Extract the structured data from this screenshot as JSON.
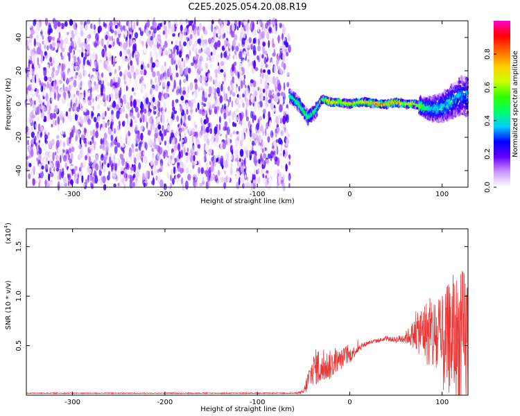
{
  "title": "C2E5.2025.054.20.08.R19",
  "chart_data": [
    {
      "type": "heatmap",
      "xlabel": "Height of straight line (km)",
      "ylabel": "Frequency (Hz)",
      "xlim": [
        -350,
        128
      ],
      "ylim": [
        -50,
        50
      ],
      "x_ticks": [
        -300,
        -200,
        -100,
        0,
        100
      ],
      "x_tick_labels": [
        "-300",
        "-200",
        "-100",
        "0",
        "100"
      ],
      "y_ticks": [
        -40,
        -20,
        0,
        20,
        40
      ],
      "y_tick_labels": [
        "-40",
        "-20",
        "0",
        "20",
        "40"
      ],
      "colorbar": {
        "label": "Normalized spectral amplitude",
        "range": [
          0,
          1
        ],
        "ticks": [
          0.0,
          0.2,
          0.4,
          0.6,
          0.8
        ],
        "tick_labels": [
          "0.0",
          "0.2",
          "0.4",
          "0.6",
          "0.8"
        ],
        "colors": [
          "#ffffff",
          "#cc99ff",
          "#6600ff",
          "#0000ff",
          "#00ccff",
          "#00ff66",
          "#33ff00",
          "#ccff00",
          "#ffcc00",
          "#ff6600",
          "#ff0000",
          "#ff00cc"
        ]
      },
      "noise_region": {
        "x_start": -350,
        "x_end": -65,
        "freq_range": [
          -50,
          50
        ],
        "amplitude": [
          0.0,
          0.2
        ]
      },
      "signal_ridge": [
        {
          "x": -65,
          "freq": 5,
          "amp": 0.45
        },
        {
          "x": -55,
          "freq": 0,
          "amp": 0.5
        },
        {
          "x": -45,
          "freq": -8,
          "amp": 0.5
        },
        {
          "x": -38,
          "freq": -5,
          "amp": 0.5
        },
        {
          "x": -30,
          "freq": 3,
          "amp": 0.6
        },
        {
          "x": -20,
          "freq": 1,
          "amp": 0.85
        },
        {
          "x": -10,
          "freq": 1,
          "amp": 0.7
        },
        {
          "x": 0,
          "freq": 0,
          "amp": 0.75
        },
        {
          "x": 10,
          "freq": 1,
          "amp": 0.7
        },
        {
          "x": 20,
          "freq": 1,
          "amp": 0.8
        },
        {
          "x": 30,
          "freq": 0,
          "amp": 0.9
        },
        {
          "x": 40,
          "freq": 0,
          "amp": 0.85
        },
        {
          "x": 50,
          "freq": 1,
          "amp": 0.9
        },
        {
          "x": 60,
          "freq": 0,
          "amp": 0.7
        },
        {
          "x": 70,
          "freq": 0,
          "amp": 0.75
        },
        {
          "x": 80,
          "freq": -2,
          "amp": 0.5
        },
        {
          "x": 90,
          "freq": -3,
          "amp": 0.4
        },
        {
          "x": 100,
          "freq": -2,
          "amp": 0.4
        },
        {
          "x": 110,
          "freq": 1,
          "amp": 0.4
        },
        {
          "x": 120,
          "freq": 5,
          "amp": 0.35
        }
      ]
    },
    {
      "type": "line",
      "xlabel": "Height of straight line (km)",
      "ylabel": "SNR (10 * v/v)",
      "y_multiplier_label": "(x10",
      "y_multiplier_exp": "4",
      "y_multiplier_close": ")",
      "xlim": [
        -350,
        128
      ],
      "ylim": [
        0,
        1.68
      ],
      "x_ticks": [
        -300,
        -200,
        -100,
        0,
        100
      ],
      "x_tick_labels": [
        "-300",
        "-200",
        "-100",
        "0",
        "100"
      ],
      "y_ticks": [
        0.5,
        1.0,
        1.5
      ],
      "y_tick_labels": [
        "0.5",
        "1.0",
        "1.5"
      ],
      "series": [
        {
          "color": "#ee3333",
          "x": [
            -350,
            -300,
            -250,
            -200,
            -150,
            -100,
            -60,
            -50,
            -45,
            -40,
            -35,
            -30,
            -25,
            -20,
            -15,
            -10,
            -5,
            0,
            10,
            20,
            30,
            40,
            50,
            60,
            65,
            70,
            80,
            90,
            100,
            110,
            120,
            128
          ],
          "y": [
            0.02,
            0.02,
            0.02,
            0.02,
            0.02,
            0.02,
            0.02,
            0.03,
            0.15,
            0.25,
            0.3,
            0.25,
            0.3,
            0.3,
            0.35,
            0.35,
            0.4,
            0.4,
            0.48,
            0.53,
            0.55,
            0.57,
            0.56,
            0.58,
            0.6,
            0.62,
            0.65,
            0.6,
            0.5,
            0.6,
            0.55,
            0.6
          ],
          "spread": [
            0.005,
            0.005,
            0.005,
            0.005,
            0.005,
            0.005,
            0.005,
            0.02,
            0.12,
            0.15,
            0.2,
            0.15,
            0.15,
            0.15,
            0.12,
            0.1,
            0.1,
            0.08,
            0.04,
            0.02,
            0.02,
            0.02,
            0.03,
            0.06,
            0.1,
            0.15,
            0.3,
            0.4,
            0.5,
            0.6,
            0.7,
            0.75
          ]
        }
      ]
    }
  ]
}
